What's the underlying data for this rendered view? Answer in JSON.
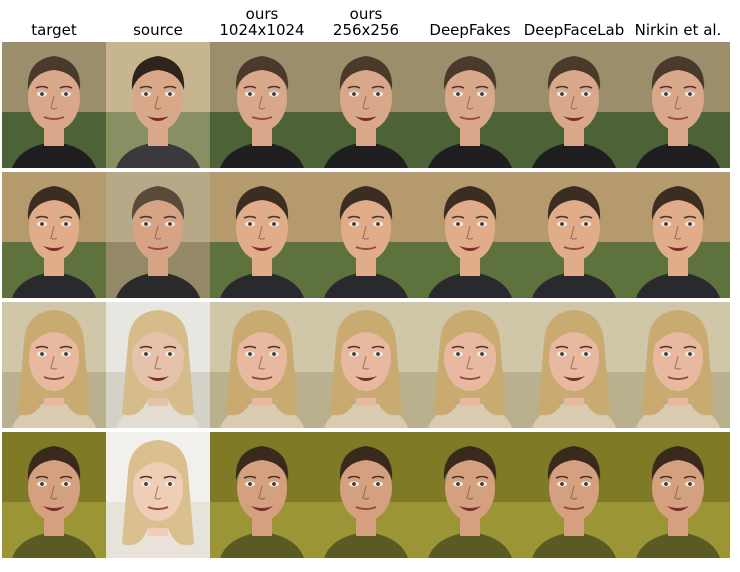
{
  "figure": {
    "columns": [
      {
        "label": "target"
      },
      {
        "label": "source"
      },
      {
        "label": "ours\n1024x1024"
      },
      {
        "label": "ours\n256x256"
      },
      {
        "label": "DeepFakes"
      },
      {
        "label": "DeepFaceLab"
      },
      {
        "label": "Nirkin et al."
      }
    ],
    "rows": 4,
    "row_themes": [
      {
        "bg": "#9a8f6a",
        "bg2": "#3f5c2e",
        "skin": "#d9a88b",
        "hair": "#4a3a2c",
        "shirt": "#1f1f22"
      },
      {
        "bg": "#b49a6c",
        "bg2": "#4d6b35",
        "skin": "#e0ac8a",
        "hair": "#3b2d22",
        "shirt": "#2a2a2e"
      },
      {
        "bg": "#cfc7a8",
        "bg2": "#b5ab8a",
        "skin": "#e8b9a0",
        "hair": "#c9aa70",
        "shirt": "#d9cbb0"
      },
      {
        "bg": "#7f7a26",
        "bg2": "#a09a3a",
        "skin": "#d4a080",
        "hair": "#3a2a1e",
        "shirt": "#5a5a25"
      }
    ],
    "source_overrides": [
      {
        "row": 1,
        "skin": "#d8a888",
        "hair": "#2e241c",
        "bg": "#c7b58f",
        "bg2": "#7b8a5a",
        "shirt": "#3a3a3e"
      },
      {
        "row": 2,
        "skin": "#d6a384",
        "hair": "#5a4a3a",
        "bg": "#b7a987",
        "bg2": "#8d8462",
        "shirt": "#2a2a2a"
      },
      {
        "row": 3,
        "skin": "#e7c2aa",
        "hair": "#d5bc8a",
        "bg": "#e8e6e0",
        "bg2": "#d0ccc2",
        "shirt": "#e2dcd2"
      },
      {
        "row": 4,
        "skin": "#f0cdb6",
        "hair": "#d9c08e",
        "bg": "#f2f0ec",
        "bg2": "#e4e0d8",
        "shirt": "#e8e2d8"
      }
    ]
  }
}
